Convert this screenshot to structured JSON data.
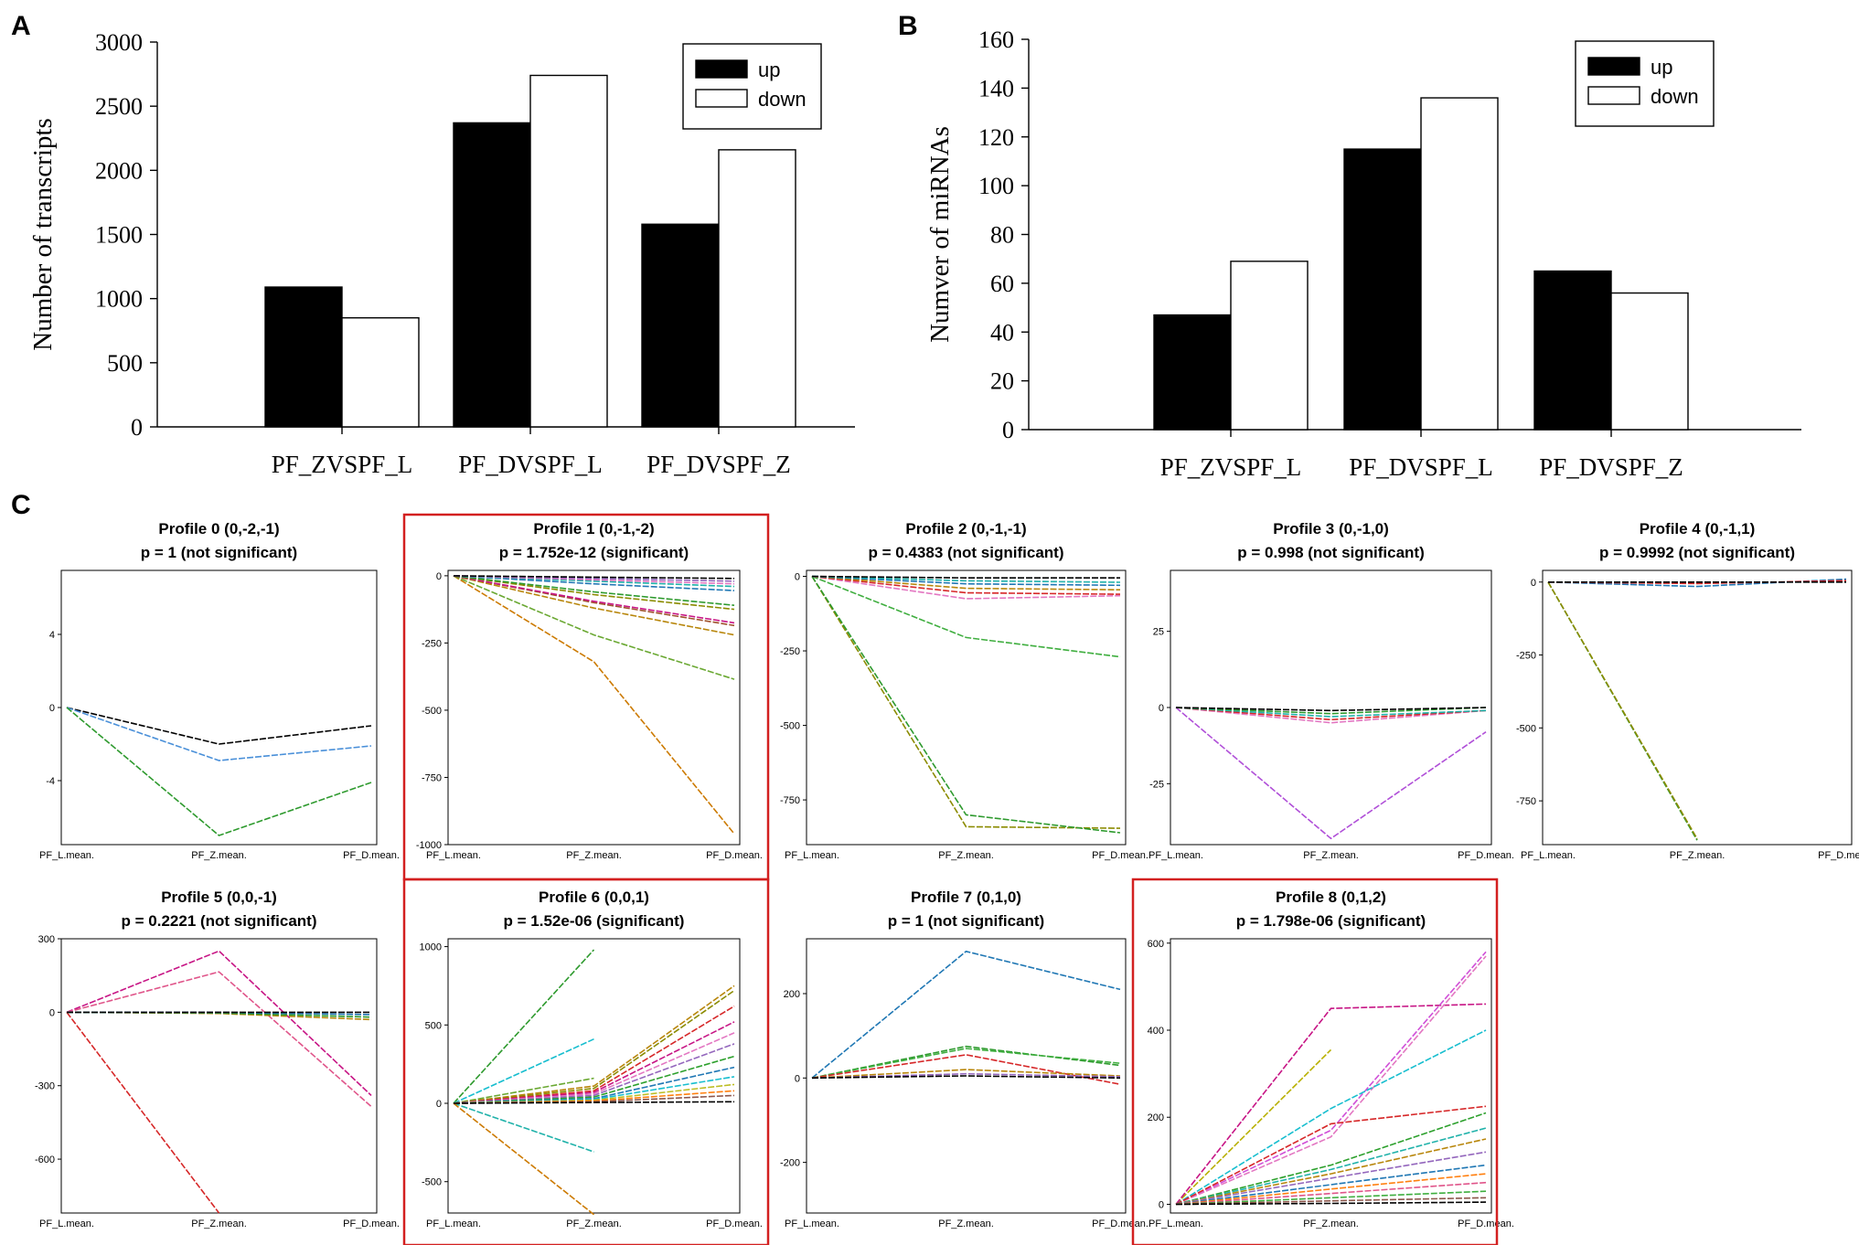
{
  "panel_letters": {
    "a": "A",
    "b": "B",
    "c": "C"
  },
  "chart_data": [
    {
      "id": "A",
      "type": "bar",
      "ylabel": "Number of transcripts",
      "categories": [
        "PF_ZVSPF_L",
        "PF_DVSPF_L",
        "PF_DVSPF_Z"
      ],
      "series": [
        {
          "name": "up",
          "color": "#000000",
          "values": [
            1090,
            2370,
            1580
          ]
        },
        {
          "name": "down",
          "color": "#ffffff",
          "values": [
            850,
            2740,
            2160
          ]
        }
      ],
      "ylim": [
        0,
        3000
      ],
      "yticks": [
        "0",
        "500",
        "1000",
        "1500",
        "2000",
        "2500",
        "3000"
      ],
      "legend_position": "top-right"
    },
    {
      "id": "B",
      "type": "bar",
      "ylabel": "Numver of miRNAs",
      "categories": [
        "PF_ZVSPF_L",
        "PF_DVSPF_L",
        "PF_DVSPF_Z"
      ],
      "series": [
        {
          "name": "up",
          "color": "#000000",
          "values": [
            47,
            115,
            65
          ]
        },
        {
          "name": "down",
          "color": "#ffffff",
          "values": [
            69,
            136,
            56
          ]
        }
      ],
      "ylim": [
        0,
        160
      ],
      "yticks": [
        "0",
        "20",
        "40",
        "60",
        "80",
        "100",
        "120",
        "140",
        "160"
      ],
      "legend_position": "top-right"
    },
    {
      "id": "C",
      "type": "line",
      "x": [
        "PF_L.mean.",
        "PF_Z.mean.",
        "PF_D.mean."
      ],
      "profiles": [
        {
          "title": "Profile 0 (0,-2,-1)",
          "subtitle": "p = 1 (not significant)",
          "significant": false,
          "ylim": [
            -7.5,
            7.5
          ],
          "yticks": [
            "4",
            "0",
            "-4"
          ],
          "ytick_values": [
            4,
            0,
            -4
          ],
          "lines": [
            {
              "color": "#000000",
              "values": [
                0,
                -2,
                -1
              ]
            },
            {
              "color": "#4a90d9",
              "values": [
                0,
                -2.9,
                -2.1
              ]
            },
            {
              "color": "#2e9a2e",
              "values": [
                0,
                -7,
                -4.1
              ]
            }
          ]
        },
        {
          "title": "Profile 1 (0,-1,-2)",
          "subtitle": "p = 1.752e-12 (significant)",
          "significant": true,
          "ylim": [
            -1000,
            20
          ],
          "yticks": [
            "0",
            "-250",
            "-500",
            "-750",
            "-1000"
          ],
          "ytick_values": [
            0,
            -250,
            -500,
            -750,
            -1000
          ],
          "lines": [
            {
              "color": "#cc7a00",
              "values": [
                0,
                -320,
                -960
              ]
            },
            {
              "color": "#6aa832",
              "values": [
                0,
                -220,
                -385
              ]
            },
            {
              "color": "#b8860b",
              "values": [
                0,
                -120,
                -220
              ]
            },
            {
              "color": "#a0522d",
              "values": [
                0,
                -100,
                -185
              ]
            },
            {
              "color": "#c71585",
              "values": [
                0,
                -95,
                -175
              ]
            },
            {
              "color": "#8b8b00",
              "values": [
                0,
                -70,
                -125
              ]
            },
            {
              "color": "#2e9a2e",
              "values": [
                0,
                -60,
                -110
              ]
            },
            {
              "color": "#1f77b4",
              "values": [
                0,
                -30,
                -55
              ]
            },
            {
              "color": "#20b2aa",
              "values": [
                0,
                -20,
                -40
              ]
            },
            {
              "color": "#e377c2",
              "values": [
                0,
                -15,
                -30
              ]
            },
            {
              "color": "#9467bd",
              "values": [
                0,
                -10,
                -20
              ]
            },
            {
              "color": "#000000",
              "values": [
                0,
                -5,
                -10
              ]
            }
          ]
        },
        {
          "title": "Profile 2 (0,-1,-1)",
          "subtitle": "p = 0.4383 (not significant)",
          "significant": false,
          "ylim": [
            -900,
            20
          ],
          "yticks": [
            "0",
            "-250",
            "-500",
            "-750"
          ],
          "ytick_values": [
            0,
            -250,
            -500,
            -750
          ],
          "lines": [
            {
              "color": "#8b8b00",
              "values": [
                0,
                -840,
                -845
              ]
            },
            {
              "color": "#2e9a2e",
              "values": [
                0,
                -800,
                -860
              ]
            },
            {
              "color": "#3fae3f",
              "values": [
                0,
                -205,
                -270
              ]
            },
            {
              "color": "#e377c2",
              "values": [
                0,
                -75,
                -65
              ]
            },
            {
              "color": "#d62728",
              "values": [
                0,
                -55,
                -60
              ]
            },
            {
              "color": "#b8860b",
              "values": [
                0,
                -40,
                -45
              ]
            },
            {
              "color": "#1f77b4",
              "values": [
                0,
                -25,
                -30
              ]
            },
            {
              "color": "#20b2aa",
              "values": [
                0,
                -15,
                -20
              ]
            },
            {
              "color": "#000000",
              "values": [
                0,
                -5,
                -5
              ]
            }
          ]
        },
        {
          "title": "Profile 3 (0,-1,0)",
          "subtitle": "p = 0.998 (not significant)",
          "significant": false,
          "ylim": [
            -45,
            45
          ],
          "yticks": [
            "25",
            "0",
            "-25"
          ],
          "ytick_values": [
            25,
            0,
            -25
          ],
          "lines": [
            {
              "color": "#b04fd8",
              "values": [
                0,
                -43,
                -8
              ]
            },
            {
              "color": "#e377c2",
              "values": [
                0,
                -5,
                -1
              ]
            },
            {
              "color": "#d62728",
              "values": [
                0,
                -4,
                -1
              ]
            },
            {
              "color": "#20b2aa",
              "values": [
                0,
                -3,
                -1
              ]
            },
            {
              "color": "#2e9a2e",
              "values": [
                0,
                -2,
                0
              ]
            },
            {
              "color": "#000000",
              "values": [
                0,
                -1,
                0
              ]
            }
          ]
        },
        {
          "title": "Profile 4 (0,-1,1)",
          "subtitle": "p = 0.9992 (not significant)",
          "significant": false,
          "ylim": [
            -900,
            40
          ],
          "yticks": [
            "0",
            "-250",
            "-500",
            "-750"
          ],
          "ytick_values": [
            0,
            -250,
            -500,
            -750
          ],
          "lines": [
            {
              "color": "#2e9a2e",
              "values": [
                0,
                -885,
                null
              ]
            },
            {
              "color": "#8b8b00",
              "values": [
                0,
                -880,
                null
              ]
            },
            {
              "color": "#1f77b4",
              "values": [
                0,
                -15,
                10
              ]
            },
            {
              "color": "#d62728",
              "values": [
                0,
                -5,
                5
              ]
            },
            {
              "color": "#000000",
              "values": [
                0,
                0,
                0
              ]
            }
          ]
        },
        {
          "title": "Profile 5 (0,0,-1)",
          "subtitle": "p = 0.2221 (not significant)",
          "significant": false,
          "ylim": [
            -820,
            300
          ],
          "yticks": [
            "300",
            "0",
            "-300",
            "-600"
          ],
          "ytick_values": [
            300,
            0,
            -300,
            -600
          ],
          "lines": [
            {
              "color": "#d62728",
              "values": [
                0,
                -820,
                null
              ]
            },
            {
              "color": "#c71585",
              "values": [
                0,
                250,
                -340
              ]
            },
            {
              "color": "#e0558a",
              "values": [
                0,
                165,
                -385
              ]
            },
            {
              "color": "#b8860b",
              "values": [
                0,
                -5,
                -30
              ]
            },
            {
              "color": "#2e9a2e",
              "values": [
                0,
                -3,
                -20
              ]
            },
            {
              "color": "#1f77b4",
              "values": [
                0,
                0,
                -10
              ]
            },
            {
              "color": "#000000",
              "values": [
                0,
                0,
                0
              ]
            }
          ]
        },
        {
          "title": "Profile 6 (0,0,1)",
          "subtitle": "p = 1.52e-06 (significant)",
          "significant": true,
          "ylim": [
            -700,
            1050
          ],
          "yticks": [
            "1000",
            "500",
            "0",
            "-500"
          ],
          "ytick_values": [
            1000,
            500,
            0,
            -500
          ],
          "lines": [
            {
              "color": "#2e9a2e",
              "values": [
                0,
                980,
                null
              ]
            },
            {
              "color": "#17becf",
              "values": [
                0,
                410,
                null
              ]
            },
            {
              "color": "#6aa832",
              "values": [
                0,
                160,
                null
              ]
            },
            {
              "color": "#20b2aa",
              "values": [
                0,
                -310,
                null
              ]
            },
            {
              "color": "#cc7a00",
              "values": [
                0,
                -710,
                null
              ]
            },
            {
              "color": "#b8860b",
              "values": [
                0,
                110,
                750
              ]
            },
            {
              "color": "#8b8b00",
              "values": [
                0,
                95,
                720
              ]
            },
            {
              "color": "#d62728",
              "values": [
                0,
                80,
                620
              ]
            },
            {
              "color": "#c71585",
              "values": [
                0,
                70,
                520
              ]
            },
            {
              "color": "#e377c2",
              "values": [
                0,
                60,
                450
              ]
            },
            {
              "color": "#9467bd",
              "values": [
                0,
                50,
                380
              ]
            },
            {
              "color": "#2ca02c",
              "values": [
                0,
                40,
                300
              ]
            },
            {
              "color": "#1f77b4",
              "values": [
                0,
                30,
                230
              ]
            },
            {
              "color": "#17becf",
              "values": [
                0,
                25,
                170
              ]
            },
            {
              "color": "#bcbd22",
              "values": [
                0,
                20,
                120
              ]
            },
            {
              "color": "#ff7f0e",
              "values": [
                0,
                15,
                80
              ]
            },
            {
              "color": "#8c564b",
              "values": [
                0,
                10,
                50
              ]
            },
            {
              "color": "#000000",
              "values": [
                0,
                5,
                10
              ]
            }
          ]
        },
        {
          "title": "Profile 7 (0,1,0)",
          "subtitle": "p = 1 (not significant)",
          "significant": false,
          "ylim": [
            -320,
            330
          ],
          "yticks": [
            "200",
            "0",
            "-200"
          ],
          "ytick_values": [
            200,
            0,
            -200
          ],
          "lines": [
            {
              "color": "#1f77b4",
              "values": [
                0,
                300,
                210
              ]
            },
            {
              "color": "#2e9a2e",
              "values": [
                0,
                75,
                30
              ]
            },
            {
              "color": "#3fae3f",
              "values": [
                0,
                70,
                35
              ]
            },
            {
              "color": "#d62728",
              "values": [
                0,
                55,
                -15
              ]
            },
            {
              "color": "#b8860b",
              "values": [
                0,
                20,
                5
              ]
            },
            {
              "color": "#9467bd",
              "values": [
                0,
                10,
                3
              ]
            },
            {
              "color": "#000000",
              "values": [
                0,
                5,
                0
              ]
            }
          ]
        },
        {
          "title": "Profile 8 (0,1,2)",
          "subtitle": "p = 1.798e-06 (significant)",
          "significant": true,
          "ylim": [
            -20,
            610
          ],
          "yticks": [
            "600",
            "400",
            "200",
            "0"
          ],
          "ytick_values": [
            600,
            400,
            200,
            0
          ],
          "lines": [
            {
              "color": "#b8b000",
              "values": [
                0,
                355,
                null
              ]
            },
            {
              "color": "#c71585",
              "values": [
                0,
                450,
                460
              ]
            },
            {
              "color": "#d04fd8",
              "values": [
                0,
                170,
                580
              ]
            },
            {
              "color": "#e377c2",
              "values": [
                0,
                155,
                570
              ]
            },
            {
              "color": "#17becf",
              "values": [
                0,
                220,
                400
              ]
            },
            {
              "color": "#d62728",
              "values": [
                0,
                185,
                225
              ]
            },
            {
              "color": "#2ca02c",
              "values": [
                0,
                90,
                210
              ]
            },
            {
              "color": "#20b2aa",
              "values": [
                0,
                80,
                175
              ]
            },
            {
              "color": "#b8860b",
              "values": [
                0,
                70,
                150
              ]
            },
            {
              "color": "#9467bd",
              "values": [
                0,
                60,
                120
              ]
            },
            {
              "color": "#1f77b4",
              "values": [
                0,
                45,
                90
              ]
            },
            {
              "color": "#ff7f0e",
              "values": [
                0,
                35,
                70
              ]
            },
            {
              "color": "#e0558a",
              "values": [
                0,
                25,
                50
              ]
            },
            {
              "color": "#3fae3f",
              "values": [
                0,
                15,
                30
              ]
            },
            {
              "color": "#8c564b",
              "values": [
                0,
                8,
                15
              ]
            },
            {
              "color": "#000000",
              "values": [
                0,
                2,
                5
              ]
            }
          ]
        }
      ]
    }
  ]
}
